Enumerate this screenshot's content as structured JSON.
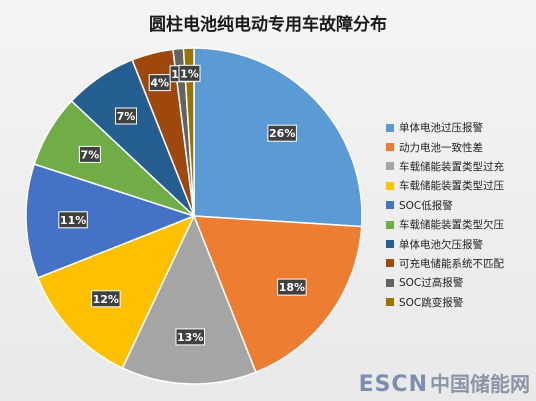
{
  "chart_data": {
    "type": "pie",
    "title": "圆柱电池纯电动专用车故障分布",
    "slices": [
      {
        "name": "单体电池过压报警",
        "value": 26,
        "label": "26%",
        "color": "#5b9bd5"
      },
      {
        "name": "动力电池一致性差",
        "value": 18,
        "label": "18%",
        "color": "#ed7d31"
      },
      {
        "name": "车载储能装置类型过充",
        "value": 13,
        "label": "13%",
        "color": "#a5a5a5"
      },
      {
        "name": "车载储能装置类型过压",
        "value": 12,
        "label": "12%",
        "color": "#ffc000"
      },
      {
        "name": "SOC低报警",
        "value": 11,
        "label": "11%",
        "color": "#4472c4"
      },
      {
        "name": "车载储能装置类型欠压",
        "value": 7,
        "label": "7%",
        "color": "#70ad47"
      },
      {
        "name": "单体电池欠压报警",
        "value": 7,
        "label": "7%",
        "color": "#255e91"
      },
      {
        "name": "可充电储能系统不匹配",
        "value": 4,
        "label": "4%",
        "color": "#9e480e"
      },
      {
        "name": "SOC过高报警",
        "value": 1,
        "label": "1%",
        "color": "#636363"
      },
      {
        "name": "SOC跳变报警",
        "value": 1,
        "label": "1%",
        "color": "#997300"
      }
    ],
    "legend_position": "right"
  },
  "watermark": {
    "latin": "ESCN",
    "chinese": "中国储能网"
  }
}
